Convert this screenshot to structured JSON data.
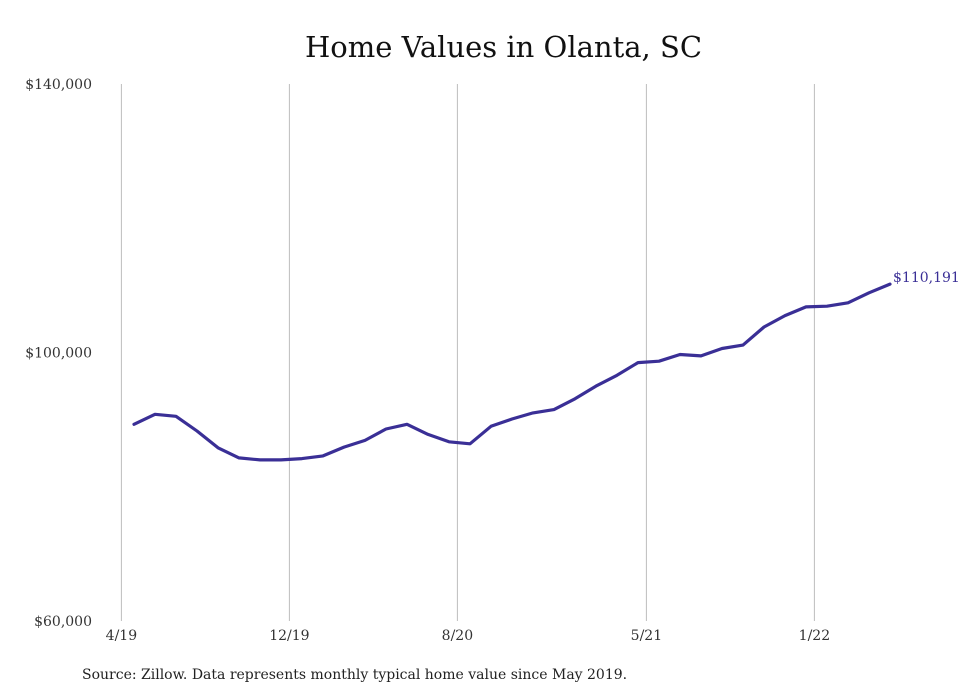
{
  "chart_data": {
    "type": "line",
    "title": "Home Values in Olanta, SC",
    "xlabel": "",
    "ylabel": "",
    "ylim": [
      60000,
      140000
    ],
    "y_ticks": [
      {
        "value": 140000,
        "label": "$140,000"
      },
      {
        "value": 100000,
        "label": "$100,000"
      },
      {
        "value": 60000,
        "label": "$60,000"
      }
    ],
    "x_ticks": [
      {
        "index": -0.6,
        "label": "4/19"
      },
      {
        "index": 7.4,
        "label": "12/19"
      },
      {
        "index": 15.4,
        "label": "8/20"
      },
      {
        "index": 24.4,
        "label": "5/21"
      },
      {
        "index": 32.4,
        "label": "1/22"
      }
    ],
    "grid": "vertical",
    "series": [
      {
        "color": "#3a2f96",
        "x": [
          "5/19",
          "6/19",
          "7/19",
          "8/19",
          "9/19",
          "10/19",
          "11/19",
          "12/19",
          "1/20",
          "2/20",
          "3/20",
          "4/20",
          "5/20",
          "6/20",
          "7/20",
          "8/20",
          "9/20",
          "10/20",
          "11/20",
          "12/20",
          "1/21",
          "2/21",
          "3/21",
          "4/21",
          "5/21",
          "6/21",
          "7/21",
          "8/21",
          "9/21",
          "10/21",
          "11/21",
          "12/21",
          "1/22",
          "2/22",
          "3/22",
          "4/22",
          "5/22"
        ],
        "values": [
          89300,
          90800,
          90500,
          88300,
          85800,
          84300,
          84000,
          84000,
          84200,
          84600,
          85900,
          86900,
          88600,
          89300,
          87800,
          86700,
          86400,
          89000,
          90100,
          91000,
          91500,
          93100,
          95000,
          96600,
          98500,
          98700,
          99700,
          99500,
          100600,
          101100,
          103800,
          105500,
          106800,
          106900,
          107400,
          108900,
          110191
        ]
      }
    ],
    "end_label": "$110,191"
  },
  "source_note": "Source: Zillow. Data represents monthly typical home value since May 2019."
}
